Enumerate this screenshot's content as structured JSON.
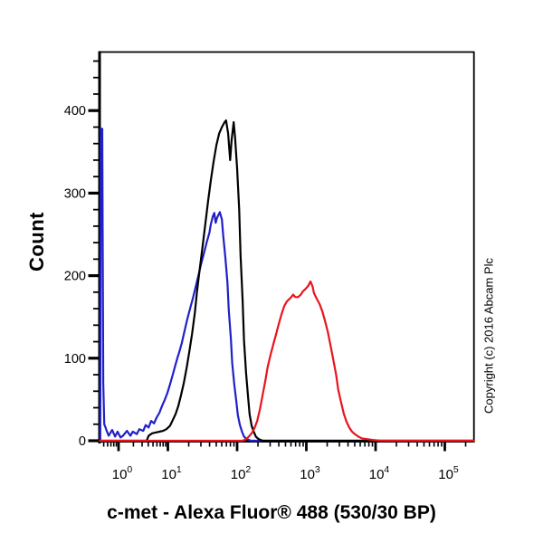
{
  "figure": {
    "title": "c-met - Alexa Fluor® 488 (530/30 BP)",
    "ylabel": "Count",
    "copyright": "Copyright (c) 2016 Abcam Plc",
    "background": "#ffffff",
    "axis_color": "#000000"
  },
  "chart_data": {
    "type": "line",
    "subtype": "flow-cytometry-histogram-overlay",
    "title": "c-met - Alexa Fluor® 488 (530/30 BP)",
    "xlabel": "c-met - Alexa Fluor® 488 (530/30 BP)",
    "ylabel": "Count",
    "x_scale": "log10",
    "x_units": "log10(fluorescence intensity)",
    "x_tick_exponents": [
      0,
      1,
      2,
      3,
      4,
      5
    ],
    "y_ticks": [
      0,
      100,
      200,
      300,
      400
    ],
    "y_minor_step": 20,
    "ylim": [
      0,
      470
    ],
    "grid": false,
    "legend": "none",
    "series": [
      {
        "name": "blue-curve",
        "color": "#2020c8",
        "peak": {
          "x_log10": 1.75,
          "count": 277
        },
        "points": [
          [
            -0.37,
            0
          ],
          [
            -0.36,
            378
          ],
          [
            -0.33,
            378
          ],
          [
            -0.31,
            70
          ],
          [
            -0.29,
            20
          ],
          [
            -0.27,
            17
          ],
          [
            -0.24,
            12
          ],
          [
            -0.2,
            6
          ],
          [
            -0.13,
            13
          ],
          [
            -0.07,
            5
          ],
          [
            -0.02,
            11
          ],
          [
            0.04,
            4
          ],
          [
            0.09,
            6
          ],
          [
            0.17,
            12
          ],
          [
            0.24,
            6
          ],
          [
            0.29,
            11
          ],
          [
            0.37,
            8
          ],
          [
            0.42,
            14
          ],
          [
            0.5,
            12
          ],
          [
            0.55,
            19
          ],
          [
            0.61,
            16
          ],
          [
            0.66,
            24
          ],
          [
            0.72,
            21
          ],
          [
            0.77,
            28
          ],
          [
            0.83,
            34
          ],
          [
            0.88,
            42
          ],
          [
            0.94,
            50
          ],
          [
            0.99,
            58
          ],
          [
            1.03,
            68
          ],
          [
            1.07,
            80
          ],
          [
            1.11,
            92
          ],
          [
            1.14,
            101
          ],
          [
            1.16,
            106
          ],
          [
            1.2,
            118
          ],
          [
            1.24,
            133
          ],
          [
            1.28,
            147
          ],
          [
            1.32,
            160
          ],
          [
            1.36,
            172
          ],
          [
            1.4,
            186
          ],
          [
            1.44,
            200
          ],
          [
            1.48,
            214
          ],
          [
            1.52,
            227
          ],
          [
            1.56,
            240
          ],
          [
            1.6,
            252
          ],
          [
            1.62,
            262
          ],
          [
            1.65,
            272
          ],
          [
            1.67,
            276
          ],
          [
            1.69,
            264
          ],
          [
            1.71,
            270
          ],
          [
            1.75,
            277
          ],
          [
            1.78,
            268
          ],
          [
            1.8,
            248
          ],
          [
            1.83,
            222
          ],
          [
            1.86,
            192
          ],
          [
            1.88,
            158
          ],
          [
            1.91,
            124
          ],
          [
            1.93,
            94
          ],
          [
            1.96,
            68
          ],
          [
            1.99,
            47
          ],
          [
            2.01,
            31
          ],
          [
            2.04,
            19
          ],
          [
            2.07,
            11
          ],
          [
            2.1,
            5
          ],
          [
            2.14,
            2
          ],
          [
            2.2,
            0
          ],
          [
            5.42,
            0
          ]
        ]
      },
      {
        "name": "black-curve",
        "color": "#000000",
        "peak": {
          "x_log10": 1.84,
          "count": 388
        },
        "points": [
          [
            -0.38,
            0
          ],
          [
            0.57,
            0
          ],
          [
            0.61,
            6
          ],
          [
            0.68,
            9
          ],
          [
            0.75,
            10
          ],
          [
            0.83,
            11
          ],
          [
            0.9,
            12
          ],
          [
            0.97,
            14
          ],
          [
            1.03,
            18
          ],
          [
            1.07,
            25
          ],
          [
            1.11,
            32
          ],
          [
            1.15,
            42
          ],
          [
            1.19,
            55
          ],
          [
            1.23,
            70
          ],
          [
            1.27,
            88
          ],
          [
            1.31,
            108
          ],
          [
            1.35,
            130
          ],
          [
            1.39,
            155
          ],
          [
            1.42,
            180
          ],
          [
            1.46,
            208
          ],
          [
            1.5,
            235
          ],
          [
            1.54,
            262
          ],
          [
            1.58,
            290
          ],
          [
            1.62,
            315
          ],
          [
            1.66,
            338
          ],
          [
            1.7,
            358
          ],
          [
            1.74,
            372
          ],
          [
            1.78,
            380
          ],
          [
            1.82,
            386
          ],
          [
            1.84,
            388
          ],
          [
            1.87,
            372
          ],
          [
            1.9,
            340
          ],
          [
            1.92,
            364
          ],
          [
            1.95,
            386
          ],
          [
            1.97,
            368
          ],
          [
            2.0,
            330
          ],
          [
            2.03,
            280
          ],
          [
            2.05,
            225
          ],
          [
            2.08,
            170
          ],
          [
            2.1,
            122
          ],
          [
            2.13,
            82
          ],
          [
            2.16,
            52
          ],
          [
            2.18,
            32
          ],
          [
            2.21,
            18
          ],
          [
            2.24,
            11
          ],
          [
            2.27,
            5
          ],
          [
            2.31,
            2
          ],
          [
            2.37,
            0
          ],
          [
            5.42,
            0
          ]
        ]
      },
      {
        "name": "red-curve",
        "color": "#e8141c",
        "peak": {
          "x_log10": 3.06,
          "count": 193
        },
        "points": [
          [
            -0.38,
            0
          ],
          [
            2.08,
            0
          ],
          [
            2.13,
            2
          ],
          [
            2.17,
            5
          ],
          [
            2.21,
            9
          ],
          [
            2.25,
            15
          ],
          [
            2.29,
            24
          ],
          [
            2.33,
            38
          ],
          [
            2.37,
            56
          ],
          [
            2.41,
            74
          ],
          [
            2.44,
            89
          ],
          [
            2.48,
            103
          ],
          [
            2.52,
            116
          ],
          [
            2.56,
            128
          ],
          [
            2.6,
            141
          ],
          [
            2.64,
            153
          ],
          [
            2.68,
            163
          ],
          [
            2.72,
            169
          ],
          [
            2.76,
            172
          ],
          [
            2.78,
            174
          ],
          [
            2.81,
            177
          ],
          [
            2.84,
            174
          ],
          [
            2.88,
            174
          ],
          [
            2.92,
            177
          ],
          [
            2.95,
            181
          ],
          [
            2.99,
            184
          ],
          [
            3.03,
            188
          ],
          [
            3.06,
            193
          ],
          [
            3.09,
            187
          ],
          [
            3.11,
            179
          ],
          [
            3.15,
            172
          ],
          [
            3.19,
            166
          ],
          [
            3.23,
            157
          ],
          [
            3.27,
            145
          ],
          [
            3.31,
            132
          ],
          [
            3.35,
            115
          ],
          [
            3.39,
            98
          ],
          [
            3.43,
            80
          ],
          [
            3.46,
            62
          ],
          [
            3.5,
            47
          ],
          [
            3.54,
            33
          ],
          [
            3.58,
            23
          ],
          [
            3.62,
            16
          ],
          [
            3.66,
            11
          ],
          [
            3.7,
            8
          ],
          [
            3.75,
            5
          ],
          [
            3.8,
            3
          ],
          [
            3.87,
            2
          ],
          [
            3.96,
            1
          ],
          [
            4.07,
            0
          ],
          [
            5.42,
            0
          ]
        ]
      }
    ]
  }
}
